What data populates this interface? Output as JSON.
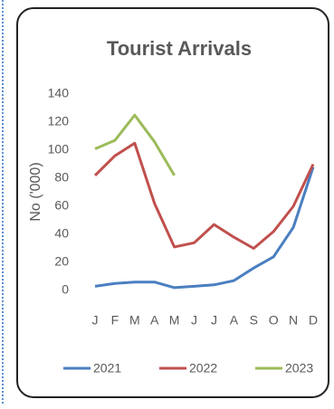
{
  "chart_data": {
    "type": "line",
    "title": "Tourist Arrivals",
    "y_label": "No ('000)",
    "categories": [
      "J",
      "F",
      "M",
      "A",
      "M",
      "J",
      "J",
      "A",
      "S",
      "O",
      "N",
      "D"
    ],
    "series": [
      {
        "name": "2021",
        "color": "#4a7fc1",
        "values": [
          3,
          5,
          6,
          6,
          2,
          3,
          4,
          7,
          16,
          24,
          45,
          88
        ]
      },
      {
        "name": "2022",
        "color": "#c0504d",
        "values": [
          82,
          96,
          105,
          62,
          31,
          34,
          47,
          38,
          30,
          42,
          60,
          90
        ]
      },
      {
        "name": "2023",
        "color": "#9bbb59",
        "values": [
          101,
          107,
          125,
          106,
          82,
          null,
          null,
          null,
          null,
          null,
          null,
          null
        ]
      }
    ],
    "ylim": [
      0,
      140
    ],
    "yticks": [
      0,
      20,
      40,
      60,
      80,
      100,
      120,
      140
    ],
    "grid": false,
    "legend": "bottom"
  }
}
